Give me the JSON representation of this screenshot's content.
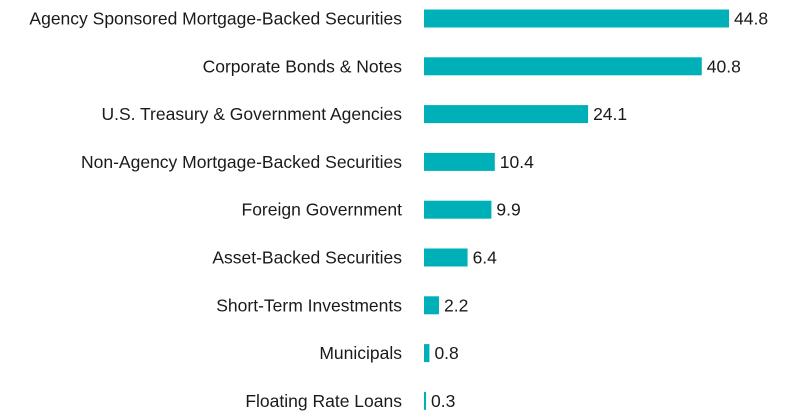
{
  "chart_data": {
    "type": "bar",
    "orientation": "horizontal",
    "categories": [
      "Agency Sponsored Mortgage-Backed Securities",
      "Corporate Bonds & Notes",
      "U.S. Treasury & Government Agencies",
      "Non-Agency Mortgage-Backed Securities",
      "Foreign Government",
      "Asset-Backed Securities",
      "Short-Term Investments",
      "Municipals",
      "Floating Rate Loans"
    ],
    "values": [
      44.8,
      40.8,
      24.1,
      10.4,
      9.9,
      6.4,
      2.2,
      0.8,
      0.3
    ],
    "value_labels": [
      "44.8",
      "40.8",
      "24.1",
      "10.4",
      "9.9",
      "6.4",
      "2.2",
      "0.8",
      "0.3"
    ],
    "bar_color": "#00b0b9",
    "grid": false,
    "legend": "none"
  }
}
